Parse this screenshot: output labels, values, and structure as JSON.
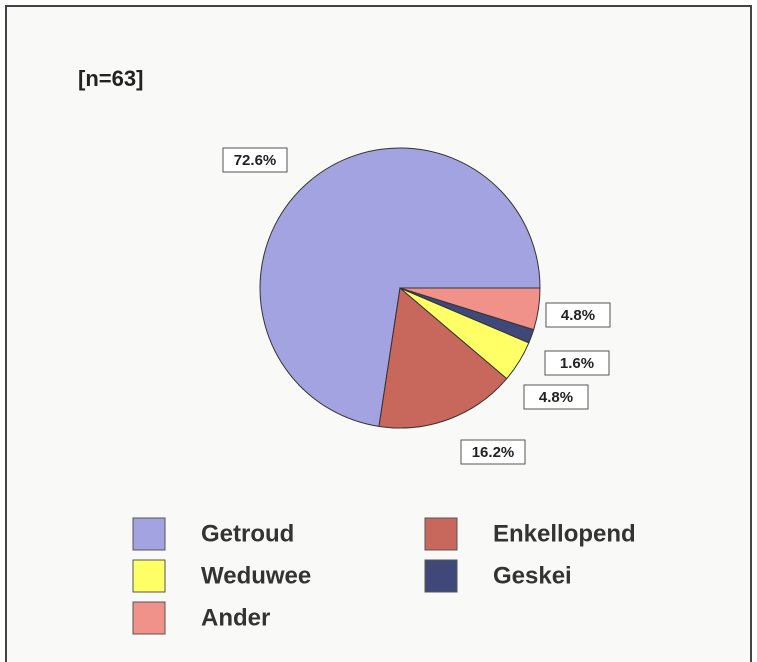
{
  "chart_data": {
    "type": "pie",
    "subtitle": "[n=63]",
    "categories": [
      "Getroud",
      "Enkellopend",
      "Weduwee",
      "Geskei",
      "Ander"
    ],
    "values": [
      72.6,
      16.2,
      4.8,
      1.6,
      4.8
    ],
    "value_labels": [
      "72.6%",
      "16.2%",
      "4.8%",
      "1.6%",
      "4.8%"
    ],
    "colors": [
      "#a3a3e2",
      "#c8675c",
      "#ffff66",
      "#3f4878",
      "#f0928a"
    ],
    "legend": "bottom"
  }
}
